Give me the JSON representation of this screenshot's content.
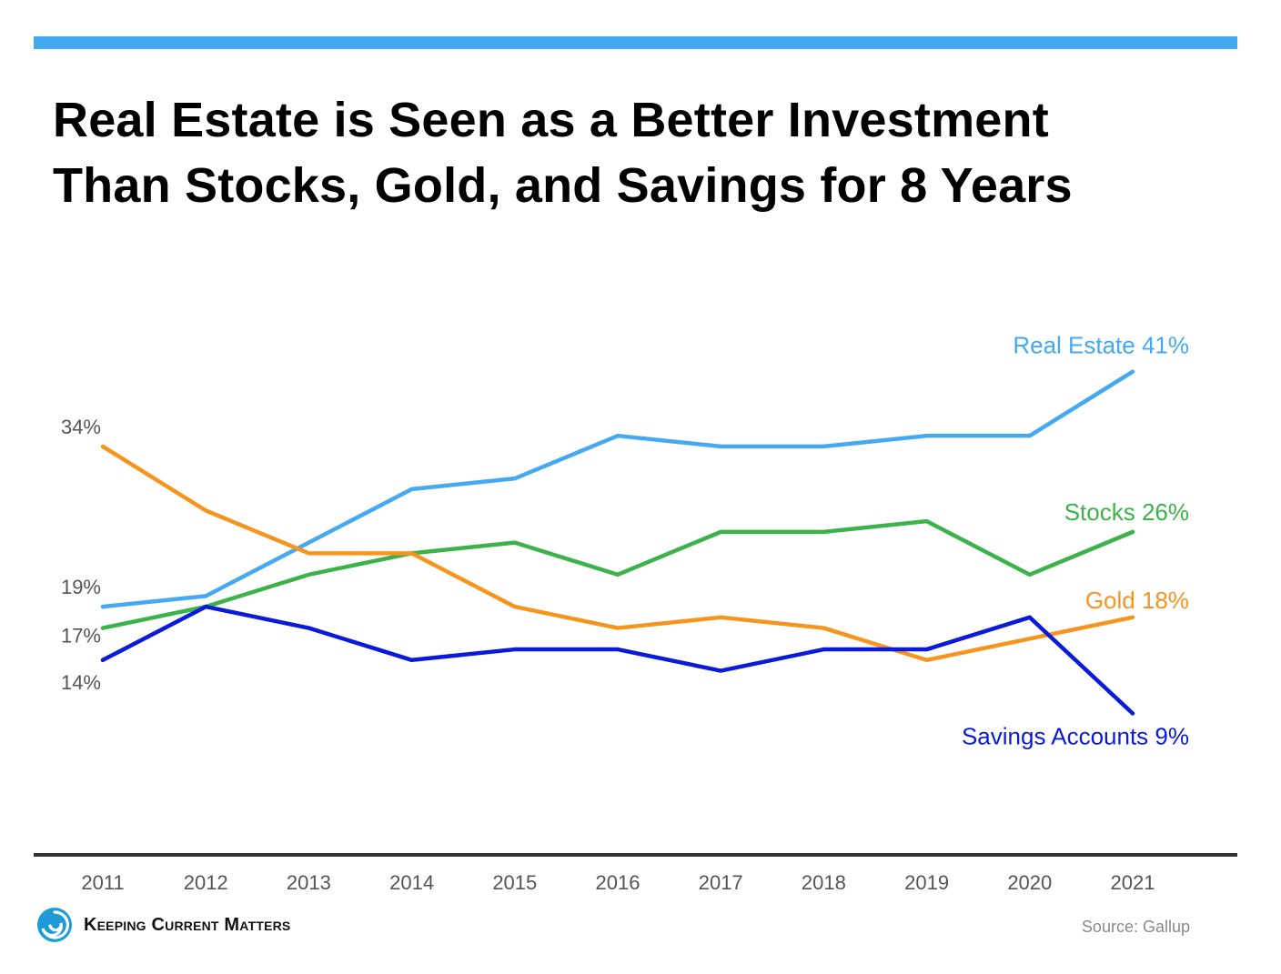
{
  "title": {
    "line1": "Real Estate is Seen as a Better Investment",
    "line2": "Than Stocks, Gold, and Savings for 8 Years"
  },
  "footer": {
    "brand": "Keeping Current Matters",
    "source": "Source: Gallup"
  },
  "colors": {
    "accent_bar": "#44a9f0",
    "axis": "#333333",
    "tick_text": "#555555"
  },
  "icons": {
    "brand": "swirl-logo-icon"
  },
  "chart_data": {
    "type": "line",
    "x": [
      2011,
      2012,
      2013,
      2014,
      2015,
      2016,
      2017,
      2018,
      2019,
      2020,
      2021
    ],
    "ylim": [
      7,
      46
    ],
    "grid": false,
    "left_labels": [
      "34%",
      "19%",
      "17%",
      "14%"
    ],
    "series": [
      {
        "name": "Real Estate",
        "end_label": "Real Estate 41%",
        "color": "#44a9f0",
        "values": [
          19,
          20,
          25,
          30,
          31,
          35,
          34,
          34,
          35,
          35,
          41
        ]
      },
      {
        "name": "Stocks",
        "end_label": "Stocks 26%",
        "color": "#3cb34a",
        "values": [
          17,
          19,
          22,
          24,
          25,
          22,
          26,
          26,
          27,
          22,
          26
        ]
      },
      {
        "name": "Gold",
        "end_label": "Gold 18%",
        "color": "#f7941d",
        "values": [
          34,
          28,
          24,
          24,
          19,
          17,
          18,
          17,
          14,
          16,
          18
        ]
      },
      {
        "name": "Savings Accounts",
        "end_label": "Savings Accounts 9%",
        "color": "#0a1adb",
        "values": [
          14,
          19,
          17,
          14,
          15,
          15,
          13,
          15,
          15,
          18,
          9
        ]
      }
    ]
  }
}
